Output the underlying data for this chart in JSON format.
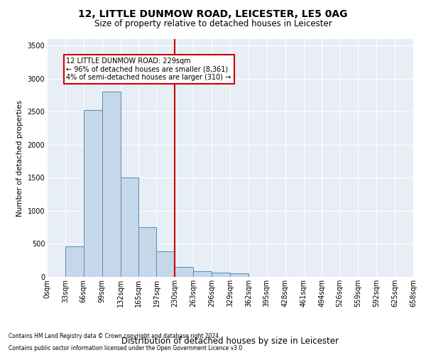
{
  "title": "12, LITTLE DUNMOW ROAD, LEICESTER, LE5 0AG",
  "subtitle": "Size of property relative to detached houses in Leicester",
  "xlabel": "Distribution of detached houses by size in Leicester",
  "ylabel": "Number of detached properties",
  "footnote1": "Contains HM Land Registry data © Crown copyright and database right 2024.",
  "footnote2": "Contains public sector information licensed under the Open Government Licence v3.0.",
  "annotation_title": "12 LITTLE DUNMOW ROAD: 229sqm",
  "annotation_line1": "← 96% of detached houses are smaller (8,361)",
  "annotation_line2": "4% of semi-detached houses are larger (310) →",
  "property_size": 229,
  "bin_edges": [
    0,
    33,
    66,
    99,
    132,
    165,
    197,
    230,
    263,
    296,
    329,
    362,
    395,
    428,
    461,
    494,
    526,
    559,
    592,
    625,
    658
  ],
  "bar_heights": [
    5,
    460,
    2530,
    2800,
    1500,
    750,
    390,
    150,
    90,
    60,
    50,
    0,
    0,
    0,
    0,
    0,
    0,
    0,
    0,
    0
  ],
  "bar_color": "#c5d8ea",
  "bar_edge_color": "#5a8db0",
  "vline_color": "#cc0000",
  "vline_x": 229,
  "annotation_box_color": "#cc0000",
  "background_color": "#e8eef5",
  "ylim": [
    0,
    3600
  ],
  "yticks": [
    0,
    500,
    1000,
    1500,
    2000,
    2500,
    3000,
    3500
  ],
  "title_fontsize": 10,
  "subtitle_fontsize": 8.5,
  "ylabel_fontsize": 7.5,
  "xlabel_fontsize": 8.5,
  "tick_fontsize": 7,
  "footnote_fontsize": 5.5
}
